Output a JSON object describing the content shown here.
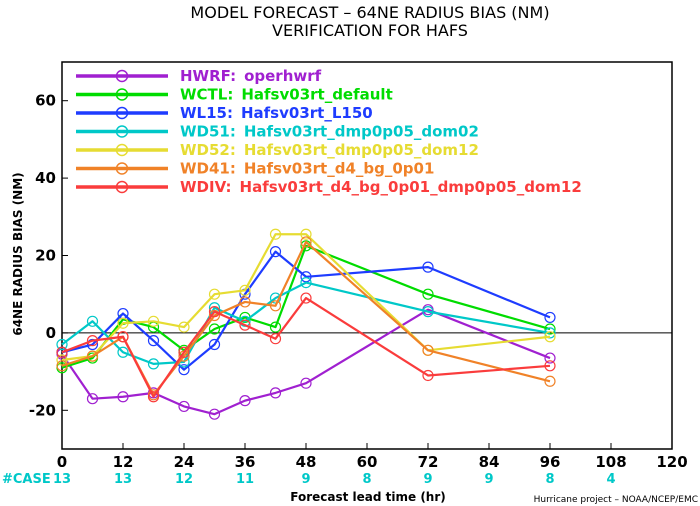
{
  "chart_data": {
    "type": "line",
    "title": "MODEL FORECAST – 64NE RADIUS BIAS (NM)",
    "subtitle": "VERIFICATION FOR HAFS",
    "xlabel": "Forecast lead time (hr)",
    "ylabel": "64NE RADIUS BIAS (NM)",
    "xlim": [
      0,
      120
    ],
    "ylim": [
      -30,
      70
    ],
    "xticks": [
      0,
      12,
      24,
      36,
      48,
      60,
      72,
      84,
      96,
      108,
      120
    ],
    "yticks": [
      -20,
      0,
      20,
      40,
      60
    ],
    "zero_line": true,
    "legend_position": "top-left",
    "case_label": "#CASE",
    "case_x": [
      0,
      12,
      24,
      36,
      48,
      60,
      72,
      84,
      96,
      108
    ],
    "case_counts": [
      "13",
      "13",
      "12",
      "11",
      "9",
      "8",
      "9",
      "9",
      "8",
      "4"
    ],
    "credit": "Hurricane project – NOAA/NCEP/EMC",
    "series": [
      {
        "name": "HWRF:",
        "desc": "operhwrf",
        "color": "#a020d0",
        "x": [
          0,
          6,
          12,
          18,
          24,
          30,
          36,
          42,
          48,
          72,
          96
        ],
        "y": [
          -5.5,
          -17,
          -16.5,
          -15.5,
          -19,
          -21,
          -17.5,
          -15.5,
          -13,
          6,
          -6.5
        ]
      },
      {
        "name": "WCTL:",
        "desc": "Hafsv03rt_default",
        "color": "#00dc00",
        "x": [
          0,
          6,
          12,
          18,
          24,
          30,
          36,
          42,
          48,
          72,
          96
        ],
        "y": [
          -9,
          -6.5,
          3.5,
          1.5,
          -4.5,
          1,
          4,
          1.5,
          22.5,
          10,
          1
        ]
      },
      {
        "name": "WL15:",
        "desc": "Hafsv03rt_L150",
        "color": "#1e3cff",
        "x": [
          0,
          6,
          12,
          18,
          24,
          30,
          36,
          42,
          48,
          72,
          96
        ],
        "y": [
          -5,
          -3,
          5,
          -2,
          -9.5,
          -3,
          10,
          21,
          14.5,
          17,
          4
        ]
      },
      {
        "name": "WD51:",
        "desc": "Hafsv03rt_dmp0p05_dom02",
        "color": "#00c8c8",
        "x": [
          0,
          6,
          12,
          18,
          24,
          30,
          36,
          42,
          48,
          72,
          96
        ],
        "y": [
          -3,
          3,
          -5,
          -8,
          -7.5,
          6.5,
          3,
          9,
          13,
          5.5,
          0
        ]
      },
      {
        "name": "WD52:",
        "desc": "Hafsv03rt_dmp0p05_dom12",
        "color": "#e6dc32",
        "x": [
          0,
          6,
          12,
          18,
          24,
          30,
          36,
          42,
          48,
          72,
          96
        ],
        "y": [
          -7,
          -6,
          2.5,
          3,
          1.5,
          10,
          11,
          25.5,
          25.5,
          -4.5,
          -1
        ]
      },
      {
        "name": "WD41:",
        "desc": "Hafsv03rt_d4_bg_0p01",
        "color": "#f08228",
        "x": [
          0,
          6,
          12,
          18,
          24,
          30,
          36,
          42,
          48,
          72,
          96
        ],
        "y": [
          -8.5,
          -6,
          -1,
          -16,
          -6,
          4.5,
          8,
          7,
          23.5,
          -4.5,
          -12.5
        ]
      },
      {
        "name": "WDIV:",
        "desc": "Hafsv03rt_d4_bg_0p01_dmp0p05_dom12",
        "color": "#fa3c3c",
        "x": [
          0,
          6,
          12,
          18,
          24,
          30,
          36,
          42,
          48,
          72,
          96
        ],
        "y": [
          -5,
          -2,
          -1,
          -16.5,
          -5,
          5.5,
          2,
          -1.5,
          9,
          -11,
          -8.5
        ]
      }
    ]
  }
}
